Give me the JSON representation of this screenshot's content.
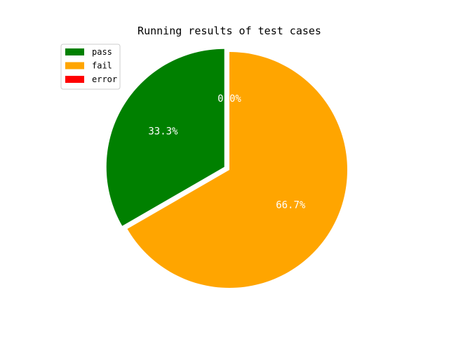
{
  "chart_data": {
    "type": "pie",
    "title": "Running results of test cases",
    "labels": [
      "pass",
      "fail",
      "error"
    ],
    "values": [
      1,
      2,
      0
    ],
    "percent_labels": [
      "33.3%",
      "66.7%",
      "0.0%"
    ],
    "colors": [
      "#008000",
      "#ffa500",
      "#ff0000"
    ],
    "explode": [
      0.05,
      0,
      0
    ],
    "start_angle_deg": 90,
    "legend_location": "upper-left"
  }
}
